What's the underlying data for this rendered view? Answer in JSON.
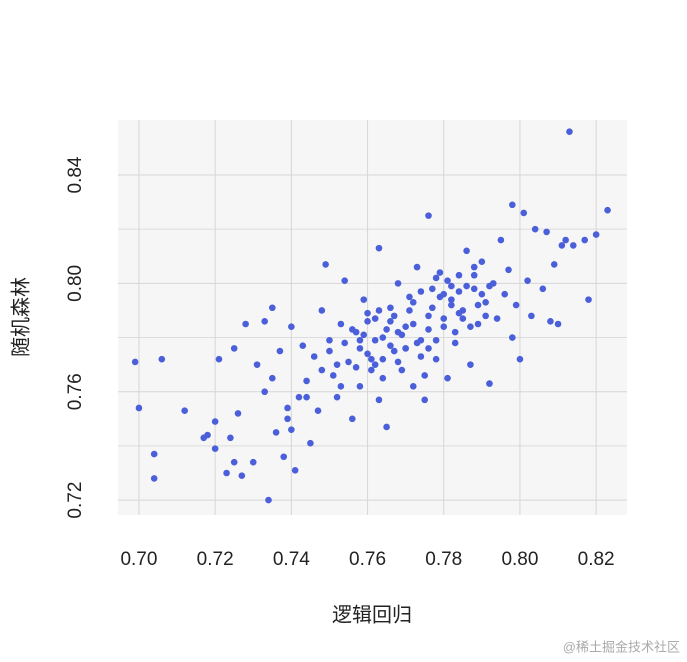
{
  "chart_data": {
    "type": "scatter",
    "x_label": "逻辑回归",
    "y_label": "随机森林",
    "watermark": "@稀土掘金技术社区",
    "color": "#4a5fd9",
    "xlim": [
      0.6945,
      0.8281
    ],
    "ylim": [
      0.7145,
      0.8603
    ],
    "xticks": [
      {
        "value": 0.7,
        "label": "0.70"
      },
      0.72,
      0.74,
      0.76,
      0.78,
      {
        "value": 0.8,
        "label": "0.80"
      },
      0.82
    ],
    "yticks": [
      0.72,
      0.76,
      {
        "value": 0.8,
        "label": "0.80"
      },
      0.84
    ],
    "y_minor_grid": [
      0.74,
      0.78,
      0.82
    ],
    "grid": true,
    "x": [
      0.699,
      0.7,
      0.704,
      0.704,
      0.706,
      0.712,
      0.717,
      0.718,
      0.72,
      0.72,
      0.721,
      0.723,
      0.724,
      0.725,
      0.725,
      0.726,
      0.727,
      0.728,
      0.73,
      0.731,
      0.733,
      0.734,
      0.735,
      0.735,
      0.736,
      0.737,
      0.738,
      0.739,
      0.74,
      0.74,
      0.741,
      0.742,
      0.743,
      0.744,
      0.745,
      0.746,
      0.747,
      0.748,
      0.749,
      0.75,
      0.751,
      0.752,
      0.753,
      0.754,
      0.755,
      0.756,
      0.757,
      0.758,
      0.759,
      0.76,
      0.761,
      0.762,
      0.763,
      0.763,
      0.764,
      0.765,
      0.766,
      0.767,
      0.768,
      0.769,
      0.77,
      0.771,
      0.772,
      0.773,
      0.774,
      0.775,
      0.776,
      0.776,
      0.777,
      0.778,
      0.779,
      0.78,
      0.781,
      0.782,
      0.783,
      0.784,
      0.785,
      0.786,
      0.787,
      0.788,
      0.789,
      0.79,
      0.791,
      0.792,
      0.793,
      0.794,
      0.795,
      0.796,
      0.797,
      0.798,
      0.798,
      0.799,
      0.8,
      0.801,
      0.802,
      0.803,
      0.804,
      0.806,
      0.807,
      0.808,
      0.809,
      0.81,
      0.811,
      0.812,
      0.813,
      0.814,
      0.817,
      0.818,
      0.82,
      0.823,
      0.748,
      0.75,
      0.752,
      0.754,
      0.756,
      0.757,
      0.758,
      0.759,
      0.76,
      0.761,
      0.762,
      0.763,
      0.764,
      0.765,
      0.766,
      0.767,
      0.768,
      0.769,
      0.77,
      0.771,
      0.772,
      0.773,
      0.774,
      0.775,
      0.776,
      0.777,
      0.778,
      0.779,
      0.78,
      0.781,
      0.782,
      0.783,
      0.784,
      0.785,
      0.786,
      0.787,
      0.788,
      0.789,
      0.79,
      0.791,
      0.76,
      0.764,
      0.768,
      0.772,
      0.776,
      0.78,
      0.784,
      0.788,
      0.792,
      0.77,
      0.766,
      0.774,
      0.778,
      0.782,
      0.758,
      0.762,
      0.744,
      0.739,
      0.733,
      0.753
    ],
    "y": [
      0.771,
      0.754,
      0.737,
      0.728,
      0.772,
      0.753,
      0.743,
      0.744,
      0.739,
      0.749,
      0.772,
      0.73,
      0.743,
      0.734,
      0.776,
      0.752,
      0.729,
      0.785,
      0.734,
      0.77,
      0.786,
      0.72,
      0.791,
      0.765,
      0.745,
      0.775,
      0.736,
      0.754,
      0.784,
      0.746,
      0.731,
      0.758,
      0.777,
      0.764,
      0.741,
      0.773,
      0.753,
      0.79,
      0.807,
      0.779,
      0.766,
      0.758,
      0.785,
      0.801,
      0.771,
      0.75,
      0.782,
      0.762,
      0.794,
      0.774,
      0.768,
      0.787,
      0.757,
      0.813,
      0.78,
      0.747,
      0.791,
      0.775,
      0.8,
      0.768,
      0.784,
      0.795,
      0.762,
      0.806,
      0.779,
      0.757,
      0.825,
      0.788,
      0.798,
      0.772,
      0.804,
      0.784,
      0.765,
      0.794,
      0.778,
      0.803,
      0.79,
      0.812,
      0.77,
      0.798,
      0.785,
      0.808,
      0.793,
      0.763,
      0.8,
      0.787,
      0.816,
      0.796,
      0.805,
      0.78,
      0.829,
      0.792,
      0.772,
      0.826,
      0.801,
      0.788,
      0.82,
      0.798,
      0.819,
      0.786,
      0.807,
      0.785,
      0.814,
      0.816,
      0.856,
      0.814,
      0.816,
      0.794,
      0.818,
      0.827,
      0.768,
      0.775,
      0.77,
      0.778,
      0.783,
      0.769,
      0.776,
      0.781,
      0.786,
      0.772,
      0.779,
      0.79,
      0.765,
      0.783,
      0.777,
      0.788,
      0.771,
      0.781,
      0.776,
      0.79,
      0.785,
      0.778,
      0.797,
      0.766,
      0.783,
      0.791,
      0.779,
      0.795,
      0.787,
      0.801,
      0.792,
      0.782,
      0.797,
      0.787,
      0.799,
      0.784,
      0.803,
      0.792,
      0.796,
      0.788,
      0.789,
      0.772,
      0.782,
      0.793,
      0.776,
      0.796,
      0.789,
      0.806,
      0.799,
      0.776,
      0.786,
      0.773,
      0.802,
      0.799,
      0.779,
      0.77,
      0.758,
      0.75,
      0.76,
      0.762
    ]
  }
}
